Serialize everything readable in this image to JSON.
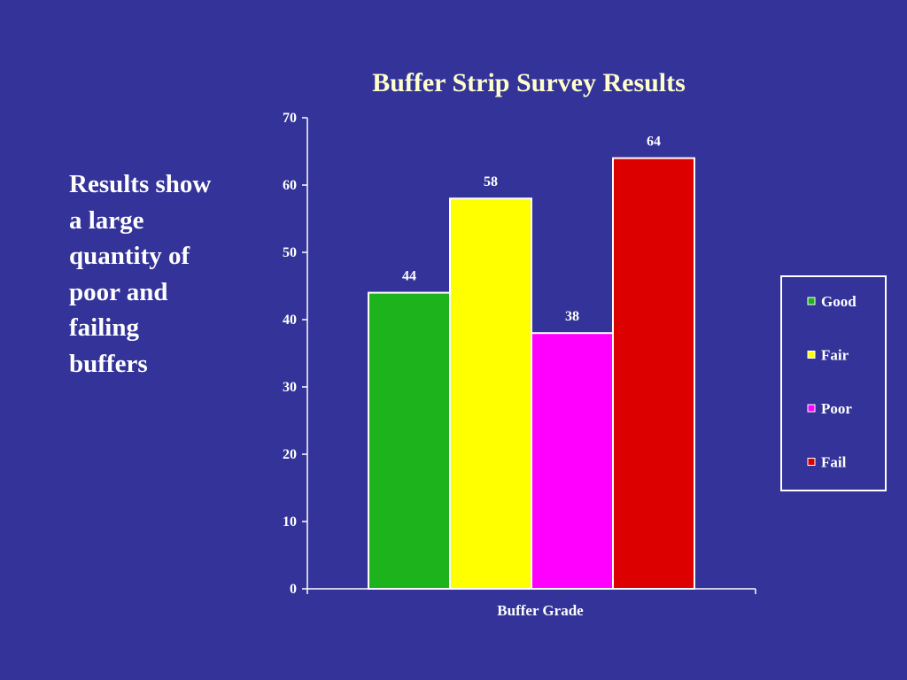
{
  "side_text": "Results show\na large\nquantity of\npoor and\nfailing\nbuffers",
  "chart_data": {
    "type": "bar",
    "title": "Buffer Strip Survey Results",
    "xlabel": "Buffer Grade",
    "ylabel": "",
    "ylim": [
      0,
      70
    ],
    "yticks": [
      0,
      10,
      20,
      30,
      40,
      50,
      60,
      70
    ],
    "categories": [
      "Buffer Grade"
    ],
    "series": [
      {
        "name": "Good",
        "values": [
          44
        ],
        "color": "#1db31d"
      },
      {
        "name": "Fair",
        "values": [
          58
        ],
        "color": "#ffff00"
      },
      {
        "name": "Poor",
        "values": [
          38
        ],
        "color": "#ff00ff"
      },
      {
        "name": "Fail",
        "values": [
          64
        ],
        "color": "#dd0000"
      }
    ],
    "data_labels": true,
    "grid": false,
    "legend": "right"
  }
}
